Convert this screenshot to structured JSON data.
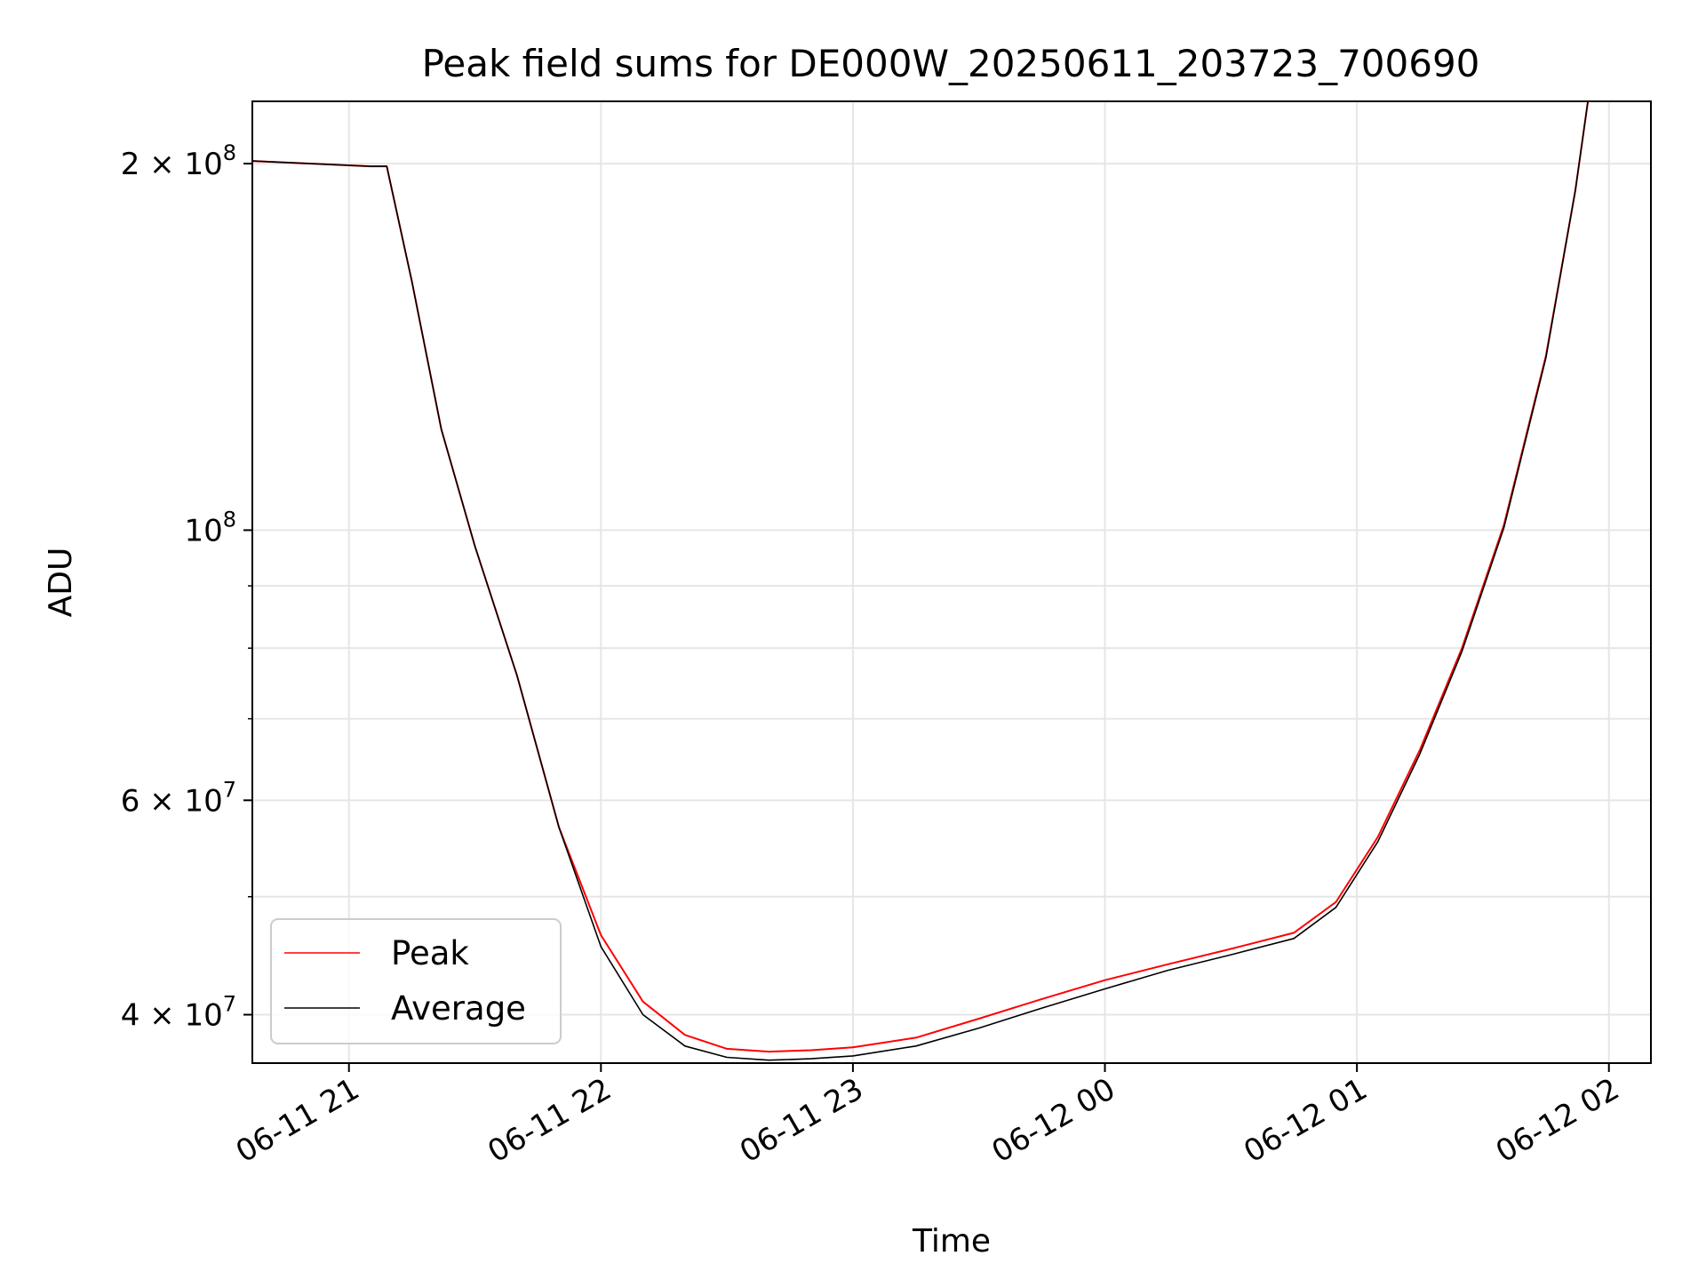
{
  "chart_data": {
    "type": "line",
    "title": "Peak field sums for DE000W_20250611_203723_700690",
    "xlabel": "Time",
    "ylabel": "ADU",
    "yscale": "log",
    "ylim": [
      36500000,
      225000000
    ],
    "xlim": [
      "2025-06-11 20:37",
      "2025-06-12 02:10"
    ],
    "grid": true,
    "legend_position": "lower-left",
    "x_ticks": [
      "06-11 21",
      "06-11 22",
      "06-11 23",
      "06-12 00",
      "06-12 01",
      "06-12 02"
    ],
    "y_ticks": [
      {
        "value": 40000000,
        "base": "4 × 10",
        "exp": "7"
      },
      {
        "value": 60000000,
        "base": "6 × 10",
        "exp": "7"
      },
      {
        "value": 100000000,
        "base": "10",
        "exp": "8"
      },
      {
        "value": 200000000,
        "base": "2 × 10",
        "exp": "8"
      }
    ],
    "series": [
      {
        "name": "Peak",
        "color": "#ff0000",
        "x": [
          "2025-06-11 20:37",
          "2025-06-11 21:05",
          "2025-06-11 21:09",
          "2025-06-11 21:15",
          "2025-06-11 21:22",
          "2025-06-11 21:30",
          "2025-06-11 21:40",
          "2025-06-11 21:50",
          "2025-06-11 22:00",
          "2025-06-11 22:10",
          "2025-06-11 22:20",
          "2025-06-11 22:30",
          "2025-06-11 22:40",
          "2025-06-11 22:50",
          "2025-06-11 23:00",
          "2025-06-11 23:15",
          "2025-06-11 23:30",
          "2025-06-11 23:45",
          "2025-06-12 00:00",
          "2025-06-12 00:15",
          "2025-06-12 00:30",
          "2025-06-12 00:45",
          "2025-06-12 00:55",
          "2025-06-12 01:05",
          "2025-06-12 01:15",
          "2025-06-12 01:25",
          "2025-06-12 01:35",
          "2025-06-12 01:45",
          "2025-06-12 01:52",
          "2025-06-12 01:55"
        ],
        "y": [
          201000000,
          199000000,
          199000000,
          160000000,
          121000000,
          97000000,
          76000000,
          57000000,
          46500000,
          41000000,
          38500000,
          37500000,
          37300000,
          37400000,
          37600000,
          38300000,
          39700000,
          41200000,
          42700000,
          44000000,
          45300000,
          46700000,
          49500000,
          56000000,
          66000000,
          80000000,
          101000000,
          139000000,
          190000000,
          225000000
        ]
      },
      {
        "name": "Average",
        "color": "#000000",
        "x": [
          "2025-06-11 20:37",
          "2025-06-11 21:05",
          "2025-06-11 21:09",
          "2025-06-11 21:15",
          "2025-06-11 21:22",
          "2025-06-11 21:30",
          "2025-06-11 21:40",
          "2025-06-11 21:50",
          "2025-06-11 22:00",
          "2025-06-11 22:10",
          "2025-06-11 22:20",
          "2025-06-11 22:30",
          "2025-06-11 22:40",
          "2025-06-11 22:50",
          "2025-06-11 23:00",
          "2025-06-11 23:15",
          "2025-06-11 23:30",
          "2025-06-11 23:45",
          "2025-06-12 00:00",
          "2025-06-12 00:15",
          "2025-06-12 00:30",
          "2025-06-12 00:45",
          "2025-06-12 00:55",
          "2025-06-12 01:05",
          "2025-06-12 01:15",
          "2025-06-12 01:25",
          "2025-06-12 01:35",
          "2025-06-12 01:45",
          "2025-06-12 01:52",
          "2025-06-12 01:55"
        ],
        "y": [
          201000000,
          199000000,
          199000000,
          160000000,
          121000000,
          97000000,
          76000000,
          57000000,
          45500000,
          40000000,
          37700000,
          36900000,
          36700000,
          36800000,
          37000000,
          37700000,
          39000000,
          40500000,
          42000000,
          43500000,
          44800000,
          46200000,
          49000000,
          55500000,
          65500000,
          79500000,
          100500000,
          138500000,
          190000000,
          225000000
        ]
      }
    ]
  }
}
